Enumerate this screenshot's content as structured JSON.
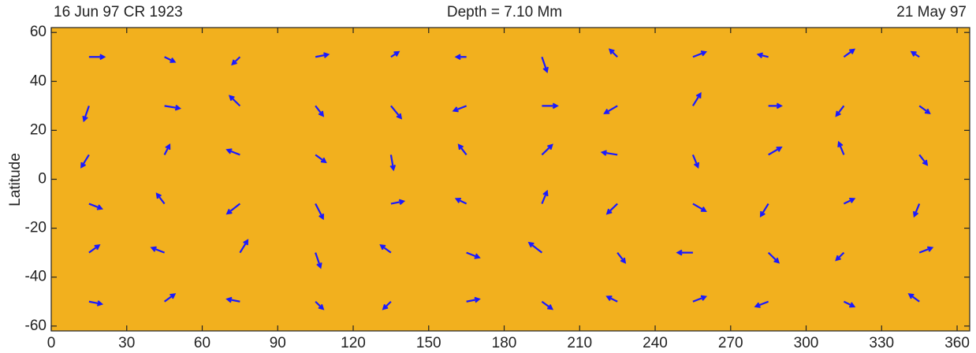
{
  "chart_data": {
    "type": "quiver",
    "title_left": "16 Jun 97   CR 1923",
    "title": "Depth = 7.10 Mm",
    "title_right": "21 May 97",
    "ylabel": "Latitude",
    "xlim": [
      0,
      365
    ],
    "ylim": [
      -62,
      62
    ],
    "xticks": [
      0,
      30,
      60,
      90,
      120,
      150,
      180,
      210,
      240,
      270,
      300,
      330,
      360
    ],
    "yticks": [
      -60,
      -40,
      -20,
      0,
      20,
      40,
      60
    ],
    "background": "#f2b01e",
    "color": "#1a1aff",
    "vectors": [
      [
        15,
        50,
        6,
        0
      ],
      [
        45,
        50,
        4,
        -2
      ],
      [
        75,
        50,
        -3,
        -3
      ],
      [
        105,
        50,
        5,
        1
      ],
      [
        135,
        50,
        3,
        2
      ],
      [
        165,
        50,
        -4,
        0
      ],
      [
        195,
        50,
        2,
        -6
      ],
      [
        225,
        50,
        -3,
        3
      ],
      [
        255,
        50,
        5,
        2
      ],
      [
        285,
        50,
        -4,
        1
      ],
      [
        315,
        50,
        4,
        3
      ],
      [
        345,
        50,
        -3,
        2
      ],
      [
        15,
        30,
        -2,
        -6
      ],
      [
        45,
        30,
        6,
        -1
      ],
      [
        75,
        30,
        -4,
        4
      ],
      [
        105,
        30,
        3,
        -4
      ],
      [
        135,
        30,
        4,
        -5
      ],
      [
        165,
        30,
        -5,
        -2
      ],
      [
        195,
        30,
        6,
        0
      ],
      [
        225,
        30,
        -5,
        -3
      ],
      [
        255,
        30,
        3,
        5
      ],
      [
        285,
        30,
        5,
        0
      ],
      [
        315,
        30,
        -3,
        -4
      ],
      [
        345,
        30,
        4,
        -3
      ],
      [
        15,
        10,
        -3,
        -5
      ],
      [
        45,
        10,
        2,
        4
      ],
      [
        75,
        10,
        -5,
        2
      ],
      [
        105,
        10,
        4,
        -3
      ],
      [
        135,
        10,
        1,
        -6
      ],
      [
        165,
        10,
        -3,
        4
      ],
      [
        195,
        10,
        4,
        4
      ],
      [
        225,
        10,
        -6,
        1
      ],
      [
        255,
        10,
        2,
        -5
      ],
      [
        285,
        10,
        5,
        3
      ],
      [
        315,
        10,
        -2,
        5
      ],
      [
        345,
        10,
        3,
        -4
      ],
      [
        15,
        -10,
        5,
        -2
      ],
      [
        45,
        -10,
        -3,
        4
      ],
      [
        75,
        -10,
        -5,
        -4
      ],
      [
        105,
        -10,
        3,
        -6
      ],
      [
        135,
        -10,
        5,
        1
      ],
      [
        165,
        -10,
        -4,
        2
      ],
      [
        195,
        -10,
        2,
        5
      ],
      [
        225,
        -10,
        -4,
        -4
      ],
      [
        255,
        -10,
        5,
        -3
      ],
      [
        285,
        -10,
        -3,
        -5
      ],
      [
        315,
        -10,
        4,
        2
      ],
      [
        345,
        -10,
        -2,
        -5
      ],
      [
        15,
        -30,
        4,
        3
      ],
      [
        45,
        -30,
        -5,
        2
      ],
      [
        75,
        -30,
        3,
        5
      ],
      [
        105,
        -30,
        2,
        -6
      ],
      [
        135,
        -30,
        -4,
        3
      ],
      [
        165,
        -30,
        5,
        -2
      ],
      [
        195,
        -30,
        -5,
        4
      ],
      [
        225,
        -30,
        3,
        -4
      ],
      [
        255,
        -30,
        -6,
        0
      ],
      [
        285,
        -30,
        4,
        -4
      ],
      [
        315,
        -30,
        -3,
        -3
      ],
      [
        345,
        -30,
        5,
        2
      ],
      [
        15,
        -50,
        5,
        -1
      ],
      [
        45,
        -50,
        4,
        3
      ],
      [
        75,
        -50,
        -5,
        1
      ],
      [
        105,
        -50,
        3,
        -3
      ],
      [
        135,
        -50,
        -3,
        -3
      ],
      [
        165,
        -50,
        5,
        1
      ],
      [
        195,
        -50,
        4,
        -3
      ],
      [
        225,
        -50,
        -4,
        2
      ],
      [
        255,
        -50,
        5,
        2
      ],
      [
        285,
        -50,
        -5,
        -2
      ],
      [
        315,
        -50,
        4,
        -2
      ],
      [
        345,
        -50,
        -4,
        3
      ]
    ]
  }
}
